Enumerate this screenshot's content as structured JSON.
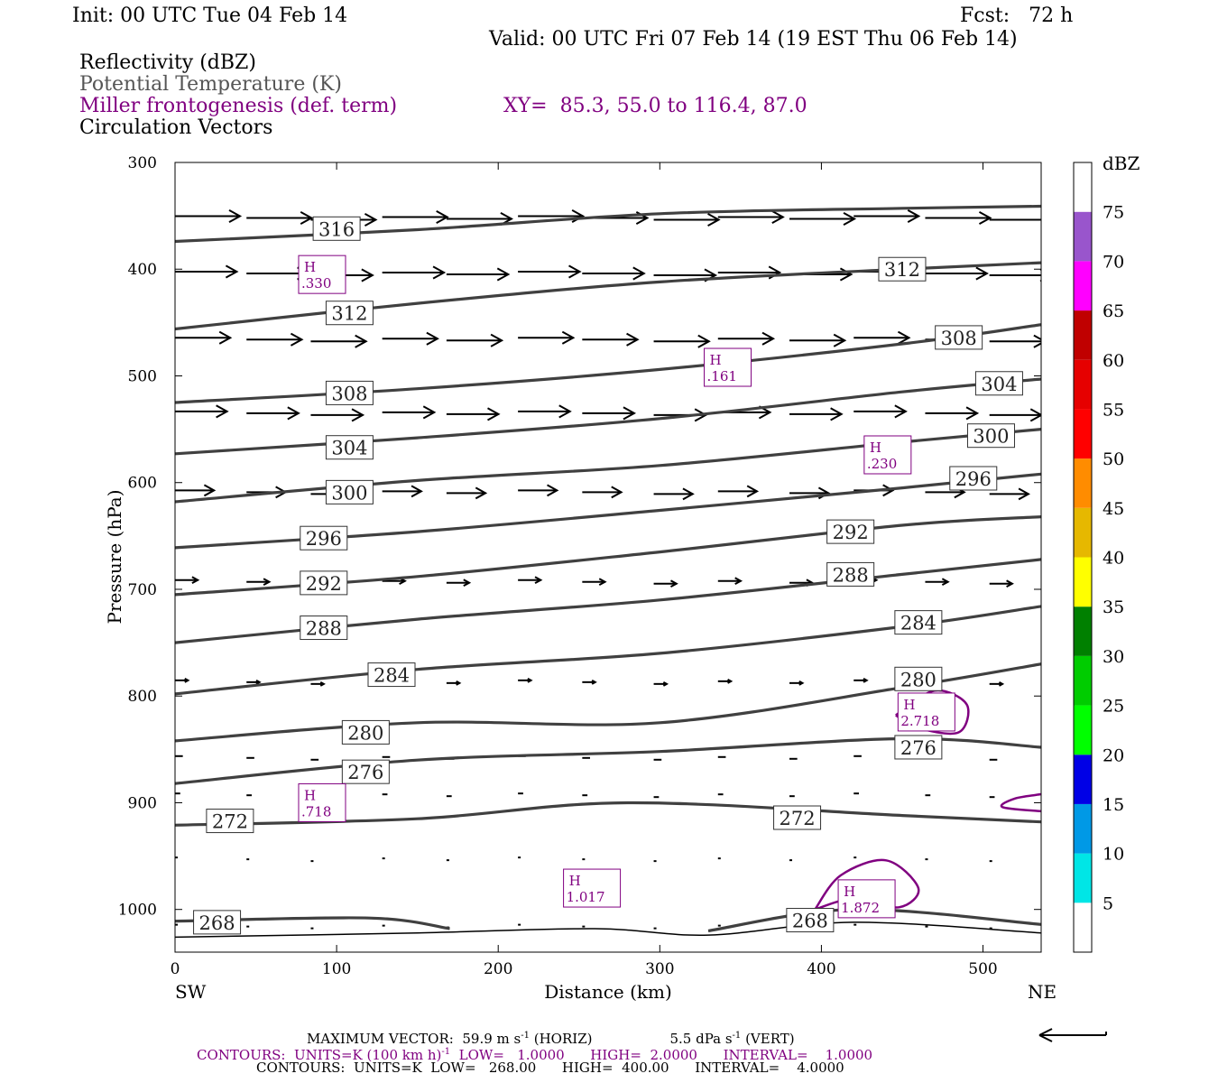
{
  "header": {
    "init": "Init: 00 UTC Tue 04 Feb 14",
    "fcst": "Fcst:   72 h",
    "valid": "Valid: 00 UTC Fri 07 Feb 14 (19 EST Thu 06 Feb 14)",
    "field1": "Reflectivity (dBZ)",
    "field2": "Potential Temperature (K)",
    "field3": "Miller frontogenesis (def. term)",
    "xy": "XY=  85.3, 55.0 to 116.4, 87.0",
    "field4": "Circulation Vectors"
  },
  "colors": {
    "theta": "#404040",
    "fronto": "#800080",
    "vector": "#000000"
  },
  "chart_data": {
    "type": "cross-section",
    "xlabel": "Distance (km)",
    "ylabel": "Pressure (hPa)",
    "x_left_label": "SW",
    "x_right_label": "NE",
    "xlim": [
      0,
      536
    ],
    "ylim": [
      1040,
      300
    ],
    "x_ticks": [
      0,
      100,
      200,
      300,
      400,
      500
    ],
    "y_ticks": [
      300,
      400,
      500,
      600,
      700,
      800,
      900,
      1000
    ],
    "theta_contours": [
      {
        "level": 316,
        "points": [
          [
            0,
            374
          ],
          [
            150,
            363
          ],
          [
            300,
            348
          ],
          [
            450,
            343
          ],
          [
            536,
            341
          ]
        ]
      },
      {
        "level": 312,
        "points": [
          [
            0,
            456
          ],
          [
            150,
            432
          ],
          [
            300,
            412
          ],
          [
            450,
            400
          ],
          [
            536,
            394
          ]
        ]
      },
      {
        "level": 308,
        "points": [
          [
            0,
            525
          ],
          [
            150,
            512
          ],
          [
            300,
            494
          ],
          [
            450,
            470
          ],
          [
            536,
            452
          ]
        ]
      },
      {
        "level": 304,
        "points": [
          [
            0,
            573
          ],
          [
            150,
            558
          ],
          [
            300,
            540
          ],
          [
            450,
            515
          ],
          [
            536,
            503
          ]
        ]
      },
      {
        "level": 300,
        "points": [
          [
            0,
            618
          ],
          [
            150,
            598
          ],
          [
            300,
            584
          ],
          [
            450,
            562
          ],
          [
            536,
            550
          ]
        ]
      },
      {
        "level": 296,
        "points": [
          [
            0,
            661
          ],
          [
            150,
            646
          ],
          [
            300,
            626
          ],
          [
            450,
            605
          ],
          [
            536,
            592
          ]
        ]
      },
      {
        "level": 292,
        "points": [
          [
            0,
            705
          ],
          [
            150,
            688
          ],
          [
            300,
            665
          ],
          [
            450,
            640
          ],
          [
            536,
            632
          ]
        ]
      },
      {
        "level": 288,
        "points": [
          [
            0,
            750
          ],
          [
            150,
            728
          ],
          [
            300,
            710
          ],
          [
            450,
            686
          ],
          [
            536,
            672
          ]
        ]
      },
      {
        "level": 284,
        "points": [
          [
            0,
            798
          ],
          [
            150,
            775
          ],
          [
            300,
            760
          ],
          [
            450,
            735
          ],
          [
            536,
            716
          ]
        ]
      },
      {
        "level": 280,
        "points": [
          [
            0,
            842
          ],
          [
            150,
            825
          ],
          [
            300,
            825
          ],
          [
            450,
            792
          ],
          [
            536,
            770
          ]
        ]
      },
      {
        "level": 276,
        "points": [
          [
            0,
            882
          ],
          [
            150,
            860
          ],
          [
            300,
            852
          ],
          [
            450,
            840
          ],
          [
            536,
            848
          ]
        ]
      },
      {
        "level": 272,
        "points": [
          [
            0,
            921
          ],
          [
            150,
            915
          ],
          [
            280,
            900
          ],
          [
            450,
            912
          ],
          [
            536,
            918
          ]
        ]
      },
      {
        "level": 268,
        "points": [
          [
            0,
            1011
          ],
          [
            120,
            1008
          ],
          [
            170,
            1018
          ]
        ]
      },
      {
        "level": 268,
        "points": [
          [
            330,
            1020
          ],
          [
            420,
            1000
          ],
          [
            536,
            1014
          ]
        ]
      }
    ],
    "theta_labels": [
      {
        "text": "316",
        "x": 100,
        "p": 362
      },
      {
        "text": "312",
        "x": 108,
        "p": 441
      },
      {
        "text": "312",
        "x": 450,
        "p": 400
      },
      {
        "text": "308",
        "x": 108,
        "p": 516
      },
      {
        "text": "308",
        "x": 485,
        "p": 464
      },
      {
        "text": "304",
        "x": 108,
        "p": 567
      },
      {
        "text": "304",
        "x": 510,
        "p": 507
      },
      {
        "text": "300",
        "x": 108,
        "p": 609
      },
      {
        "text": "300",
        "x": 505,
        "p": 556
      },
      {
        "text": "296",
        "x": 92,
        "p": 652
      },
      {
        "text": "296",
        "x": 494,
        "p": 596
      },
      {
        "text": "292",
        "x": 92,
        "p": 694
      },
      {
        "text": "292",
        "x": 418,
        "p": 646
      },
      {
        "text": "288",
        "x": 92,
        "p": 736
      },
      {
        "text": "288",
        "x": 418,
        "p": 686
      },
      {
        "text": "284",
        "x": 134,
        "p": 780
      },
      {
        "text": "284",
        "x": 460,
        "p": 731
      },
      {
        "text": "280",
        "x": 118,
        "p": 834
      },
      {
        "text": "280",
        "x": 460,
        "p": 784
      },
      {
        "text": "276",
        "x": 118,
        "p": 871
      },
      {
        "text": "276",
        "x": 460,
        "p": 848
      },
      {
        "text": "272",
        "x": 34,
        "p": 917
      },
      {
        "text": "272",
        "x": 385,
        "p": 914
      },
      {
        "text": "268",
        "x": 26,
        "p": 1012
      },
      {
        "text": "268",
        "x": 393,
        "p": 1010
      }
    ],
    "fronto_contours": [
      {
        "level": 1,
        "points": [
          [
            446,
            818
          ],
          [
            470,
            795
          ],
          [
            490,
            808
          ],
          [
            485,
            834
          ],
          [
            460,
            830
          ],
          [
            446,
            818
          ]
        ]
      },
      {
        "level": 1,
        "points": [
          [
            396,
            1000
          ],
          [
            412,
            968
          ],
          [
            440,
            954
          ],
          [
            460,
            980
          ],
          [
            448,
            998
          ],
          [
            420,
            990
          ],
          [
            396,
            1000
          ]
        ]
      },
      {
        "level": 1,
        "points": [
          [
            536,
            892
          ],
          [
            520,
            896
          ],
          [
            512,
            904
          ],
          [
            536,
            908
          ]
        ]
      }
    ],
    "fronto_maxima": [
      {
        "label": "H",
        "value": ".330",
        "x": 91,
        "p": 405
      },
      {
        "label": "H",
        "value": ".161",
        "x": 342,
        "p": 492
      },
      {
        "label": "H",
        "value": ".230",
        "x": 441,
        "p": 574
      },
      {
        "label": "H",
        "value": "2.718",
        "x": 465,
        "p": 815
      },
      {
        "label": "H",
        "value": ".718",
        "x": 91,
        "p": 900
      },
      {
        "label": "H",
        "value": "1.017",
        "x": 258,
        "p": 980
      },
      {
        "label": "H",
        "value": "1.872",
        "x": 428,
        "p": 990
      }
    ],
    "vector_levels": [
      {
        "p": 352,
        "u": 1.0
      },
      {
        "p": 404,
        "u": 0.95
      },
      {
        "p": 466,
        "u": 0.85
      },
      {
        "p": 535,
        "u": 0.8
      },
      {
        "p": 609,
        "u": 0.6
      },
      {
        "p": 693,
        "u": 0.35
      },
      {
        "p": 787,
        "u": 0.2
      },
      {
        "p": 858,
        "u": 0.12
      },
      {
        "p": 893,
        "u": 0.08
      },
      {
        "p": 953,
        "u": 0.04
      },
      {
        "p": 1016,
        "u": 0.03
      }
    ],
    "vector_x": [
      0,
      42,
      84,
      126,
      168,
      210,
      252,
      294,
      336,
      378,
      420,
      462,
      504
    ],
    "colorbar": {
      "title": "dBZ",
      "levels": [
        5,
        10,
        15,
        20,
        25,
        30,
        35,
        40,
        45,
        50,
        55,
        60,
        65,
        70,
        75
      ],
      "colors": [
        "#ffffff",
        "#00e6e6",
        "#0099e6",
        "#0000e6",
        "#00ff00",
        "#00cc00",
        "#008000",
        "#ffff00",
        "#e6b800",
        "#ff8c00",
        "#ff0000",
        "#e60000",
        "#c00000",
        "#ff00ff",
        "#9955cc",
        "#ffffff"
      ]
    }
  },
  "footer": {
    "line1_a": "MAXIMUM VECTOR:  59.9 m s",
    "line1_b": "-1",
    "line1_c": " (HORIZ)",
    "line1_d": "5.5 dPa s",
    "line1_e": "-1",
    "line1_f": " (VERT)",
    "line2_a": "CONTOURS:  UNITS=K (100 km h)",
    "line2_b": "-1",
    "line2_c": "  LOW=   1.0000      HIGH=  2.0000      INTERVAL=    1.0000",
    "line3": "CONTOURS:  UNITS=K  LOW=   268.00      HIGH=  400.00      INTERVAL=    4.0000"
  }
}
